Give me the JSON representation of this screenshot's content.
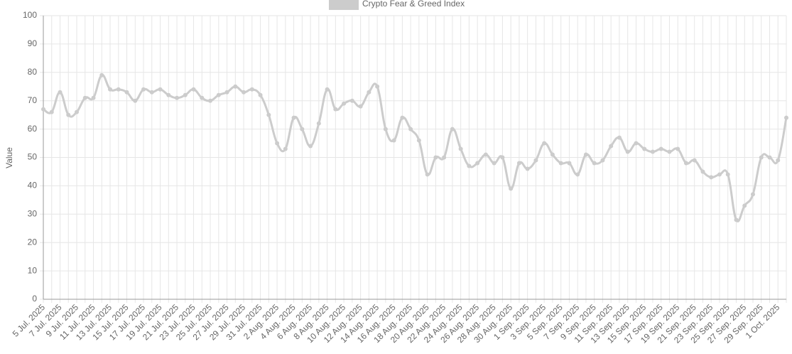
{
  "chart_data": {
    "type": "line",
    "ylabel": "Value",
    "categories": [
      "5 Jul. 2025",
      null,
      "7 Jul. 2025",
      null,
      "9 Jul. 2025",
      null,
      "11 Jul. 2025",
      null,
      "13 Jul. 2025",
      null,
      "15 Jul. 2025",
      null,
      "17 Jul. 2025",
      null,
      "19 Jul. 2025",
      null,
      "21 Jul. 2025",
      null,
      "23 Jul. 2025",
      null,
      "25 Jul. 2025",
      null,
      "27 Jul. 2025",
      null,
      "29 Jul. 2025",
      null,
      "31 Jul. 2025",
      null,
      "2 Aug. 2025",
      null,
      "4 Aug. 2025",
      null,
      "6 Aug. 2025",
      null,
      "8 Aug. 2025",
      null,
      "10 Aug. 2025",
      null,
      "12 Aug. 2025",
      null,
      "14 Aug. 2025",
      null,
      "16 Aug. 2025",
      null,
      "18 Aug. 2025",
      null,
      "20 Aug. 2025",
      null,
      "22 Aug. 2025",
      null,
      "24 Aug. 2025",
      null,
      "26 Aug. 2025",
      null,
      "28 Aug. 2025",
      null,
      "30 Aug. 2025",
      null,
      "1 Sep. 2025",
      null,
      "3 Sep. 2025",
      null,
      "5 Sep. 2025",
      null,
      "7 Sep. 2025",
      null,
      "9 Sep. 2025",
      null,
      "11 Sep. 2025",
      null,
      "13 Sep. 2025",
      null,
      "15 Sep. 2025",
      null,
      "17 Sep. 2025",
      null,
      "19 Sep. 2025",
      null,
      "21 Sep. 2025",
      null,
      "23 Sep. 2025",
      null,
      "25 Sep. 2025",
      null,
      "27 Sep. 2025",
      null,
      "29 Sep. 2025",
      null,
      "1 Oct. 2025",
      null
    ],
    "series": [
      {
        "name": "Crypto Fear & Greed Index",
        "color": "#cccccc",
        "values": [
          67,
          66,
          73,
          65,
          66,
          71,
          71,
          79,
          74,
          74,
          73,
          70,
          74,
          73,
          74,
          72,
          71,
          72,
          74,
          71,
          70,
          72,
          73,
          75,
          73,
          74,
          72,
          65,
          55,
          53,
          64,
          60,
          54,
          62,
          74,
          67,
          69,
          70,
          68,
          73,
          75,
          60,
          56,
          64,
          60,
          56,
          44,
          50,
          50,
          60,
          53,
          47,
          48,
          51,
          48,
          50,
          39,
          48,
          46,
          49,
          55,
          51,
          48,
          48,
          44,
          51,
          48,
          49,
          54,
          57,
          52,
          55,
          53,
          52,
          53,
          52,
          53,
          48,
          49,
          45,
          43,
          44,
          44,
          28,
          33,
          37,
          50,
          50,
          49,
          64
        ]
      }
    ],
    "ylim": [
      0,
      100
    ],
    "yticks": [
      0,
      10,
      20,
      30,
      40,
      50,
      60,
      70,
      80,
      90,
      100
    ],
    "grid": true
  }
}
